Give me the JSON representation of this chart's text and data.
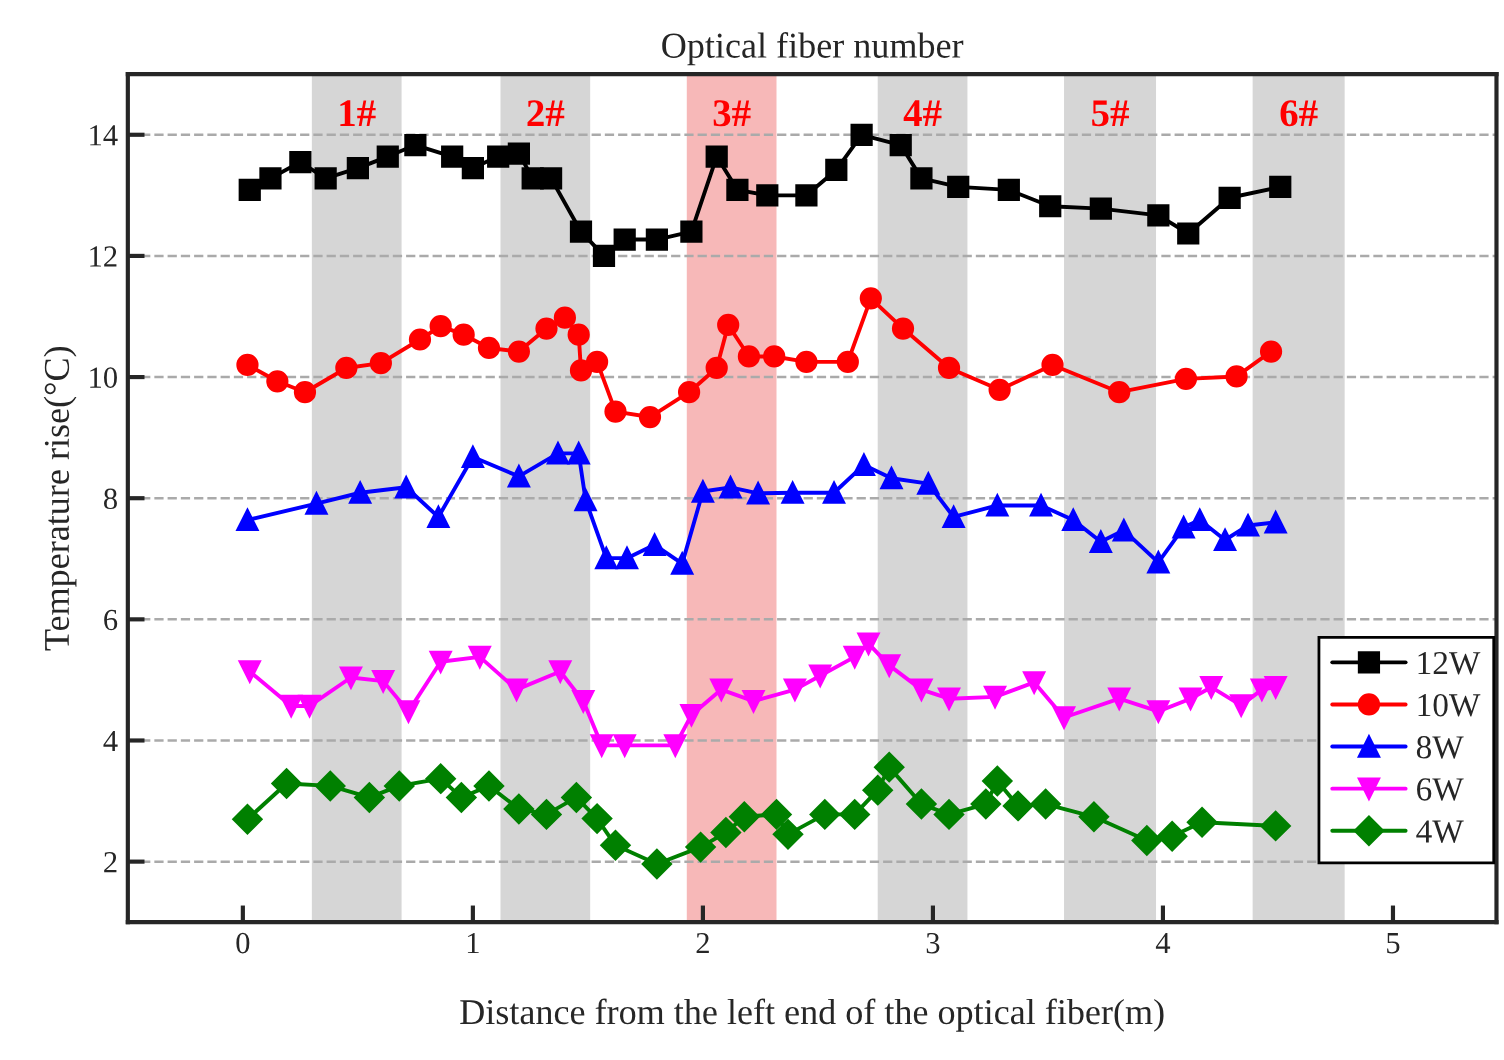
{
  "chart_data": {
    "type": "line",
    "title": "Optical fiber number",
    "xlabel": "Distance from the left end of the optical fiber(m)",
    "ylabel": "Temperature rise(°C)",
    "xlim": [
      -0.5,
      5.45
    ],
    "xticks": [
      0,
      1,
      2,
      3,
      4,
      5
    ],
    "ylim": [
      1,
      15
    ],
    "yticks": [
      2,
      4,
      6,
      8,
      10,
      12,
      14
    ],
    "grid": "y",
    "legend": "bottom right",
    "line_style": "solid",
    "bands": [
      {
        "axis": "x",
        "from": 0.3,
        "to": 0.69,
        "label": "1#",
        "color": "#c8c8c8"
      },
      {
        "axis": "x",
        "from": 1.12,
        "to": 1.51,
        "label": "2#",
        "color": "#c8c8c8"
      },
      {
        "axis": "x",
        "from": 1.93,
        "to": 2.32,
        "label": "3#",
        "color": "#f4a0a0"
      },
      {
        "axis": "x",
        "from": 2.76,
        "to": 3.15,
        "label": "4#",
        "color": "#c8c8c8"
      },
      {
        "axis": "x",
        "from": 3.57,
        "to": 3.97,
        "label": "5#",
        "color": "#c8c8c8"
      },
      {
        "axis": "x",
        "from": 4.39,
        "to": 4.79,
        "label": "6#",
        "color": "#c8c8c8"
      }
    ],
    "series": [
      {
        "name": "12W",
        "color": "#000000",
        "marker": "square",
        "x": [
          0.03,
          0.12,
          0.25,
          0.36,
          0.5,
          0.63,
          0.75,
          0.91,
          1.0,
          1.11,
          1.2,
          1.26,
          1.34,
          1.47,
          1.57,
          1.66,
          1.8,
          1.95,
          2.06,
          2.15,
          2.28,
          2.45,
          2.58,
          2.69,
          2.86,
          2.95,
          3.11,
          3.33,
          3.51,
          3.73,
          3.98,
          4.11,
          4.29,
          4.51
        ],
        "values": [
          13.09,
          13.28,
          13.55,
          13.28,
          13.45,
          13.64,
          13.83,
          13.64,
          13.45,
          13.64,
          13.69,
          13.28,
          13.28,
          12.4,
          12.0,
          12.27,
          12.27,
          12.4,
          13.64,
          13.09,
          13.0,
          13.0,
          13.42,
          14.0,
          13.83,
          13.28,
          13.14,
          13.09,
          12.82,
          12.78,
          12.67,
          12.37,
          12.96,
          13.14
        ]
      },
      {
        "name": "10W",
        "color": "#ff0000",
        "marker": "circle",
        "x": [
          0.02,
          0.15,
          0.27,
          0.45,
          0.6,
          0.77,
          0.86,
          0.96,
          1.07,
          1.2,
          1.32,
          1.4,
          1.46,
          1.47,
          1.54,
          1.62,
          1.77,
          1.94,
          2.06,
          2.11,
          2.2,
          2.31,
          2.45,
          2.63,
          2.73,
          2.87,
          3.07,
          3.29,
          3.52,
          3.81,
          4.1,
          4.32,
          4.47
        ],
        "values": [
          10.2,
          9.93,
          9.75,
          10.15,
          10.23,
          10.62,
          10.84,
          10.7,
          10.48,
          10.42,
          10.8,
          10.98,
          10.7,
          10.11,
          10.25,
          9.43,
          9.34,
          9.75,
          10.15,
          10.86,
          10.34,
          10.34,
          10.25,
          10.25,
          11.3,
          10.8,
          10.15,
          9.79,
          10.2,
          9.75,
          9.97,
          10.01,
          10.42
        ]
      },
      {
        "name": "8W",
        "color": "#0000ff",
        "marker": "triangle",
        "x": [
          0.02,
          0.32,
          0.51,
          0.71,
          0.85,
          1.0,
          1.2,
          1.37,
          1.46,
          1.49,
          1.58,
          1.67,
          1.79,
          1.91,
          2.0,
          2.12,
          2.24,
          2.39,
          2.57,
          2.7,
          2.82,
          2.98,
          3.09,
          3.28,
          3.47,
          3.61,
          3.73,
          3.83,
          3.98,
          4.09,
          4.16,
          4.27,
          4.37,
          4.49
        ],
        "values": [
          7.64,
          7.91,
          8.09,
          8.18,
          7.69,
          8.68,
          8.36,
          8.74,
          8.74,
          7.97,
          7.01,
          7.01,
          7.23,
          6.92,
          8.11,
          8.18,
          8.08,
          8.09,
          8.09,
          8.55,
          8.33,
          8.24,
          7.69,
          7.88,
          7.88,
          7.64,
          7.28,
          7.47,
          6.94,
          7.52,
          7.64,
          7.31,
          7.55,
          7.6
        ]
      },
      {
        "name": "6W",
        "color": "#ff00ff",
        "marker": "triangle_down",
        "x": [
          0.03,
          0.21,
          0.29,
          0.47,
          0.61,
          0.72,
          0.86,
          1.03,
          1.19,
          1.38,
          1.48,
          1.56,
          1.66,
          1.88,
          1.95,
          2.08,
          2.22,
          2.4,
          2.51,
          2.66,
          2.72,
          2.81,
          2.95,
          3.07,
          3.27,
          3.44,
          3.57,
          3.81,
          3.98,
          4.12,
          4.21,
          4.34,
          4.43,
          4.49
        ],
        "values": [
          5.14,
          4.57,
          4.57,
          5.04,
          4.98,
          4.48,
          5.3,
          5.38,
          4.84,
          5.14,
          4.65,
          3.92,
          3.92,
          3.92,
          4.42,
          4.84,
          4.65,
          4.84,
          5.07,
          5.38,
          5.6,
          5.24,
          4.84,
          4.69,
          4.72,
          4.96,
          4.38,
          4.69,
          4.48,
          4.69,
          4.88,
          4.58,
          4.84,
          4.88
        ]
      },
      {
        "name": "4W",
        "color": "#008000",
        "marker": "diamond",
        "x": [
          0.02,
          0.19,
          0.38,
          0.55,
          0.68,
          0.86,
          0.95,
          1.07,
          1.2,
          1.32,
          1.45,
          1.54,
          1.62,
          1.8,
          1.99,
          2.1,
          2.18,
          2.32,
          2.37,
          2.53,
          2.66,
          2.76,
          2.81,
          2.95,
          3.07,
          3.23,
          3.28,
          3.37,
          3.49,
          3.7,
          3.93,
          4.04,
          4.17,
          4.49
        ],
        "values": [
          2.7,
          3.29,
          3.25,
          3.06,
          3.25,
          3.37,
          3.06,
          3.25,
          2.87,
          2.78,
          3.06,
          2.71,
          2.27,
          1.96,
          2.24,
          2.48,
          2.74,
          2.78,
          2.45,
          2.78,
          2.78,
          3.18,
          3.56,
          2.95,
          2.78,
          2.95,
          3.33,
          2.92,
          2.95,
          2.74,
          2.35,
          2.42,
          2.65,
          2.59
        ]
      }
    ]
  }
}
